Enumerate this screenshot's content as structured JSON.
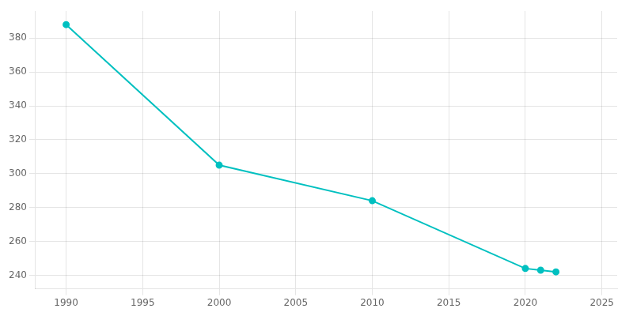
{
  "chart_data": {
    "type": "line",
    "x": [
      1990,
      2000,
      2010,
      2020,
      2021,
      2022
    ],
    "values": [
      388,
      305,
      284,
      244,
      243,
      242
    ],
    "color": "#00C0C0",
    "marker": "circle",
    "xlim": [
      1988,
      2026
    ],
    "xticks": [
      1990,
      1995,
      2000,
      2005,
      2010,
      2015,
      2020,
      2025
    ],
    "ylim": [
      232,
      396
    ],
    "yticks": [
      240,
      260,
      280,
      300,
      320,
      340,
      360,
      380
    ],
    "grid": true
  }
}
